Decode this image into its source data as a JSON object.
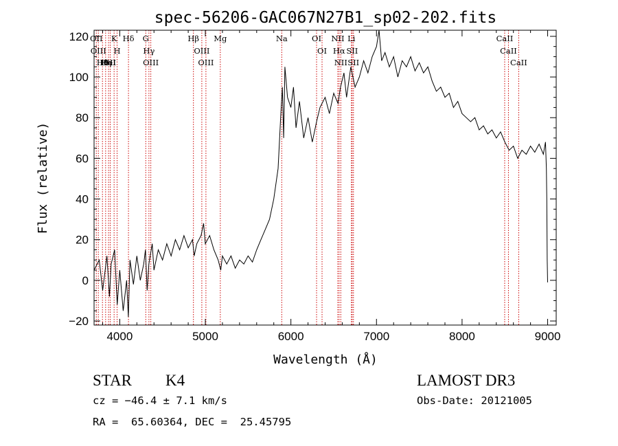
{
  "title": "spec-56206-GAC067N27B1_sp02-202.fits",
  "footer": {
    "class_label": "STAR",
    "subclass": "K4",
    "survey": "LAMOST DR3",
    "cz": "cz = −46.4 ± 7.1 km/s",
    "obs_date": "Obs-Date: 20121005",
    "radec": "RA =  65.60364, DEC =  25.45795"
  },
  "colors": {
    "line_marker": "#cc0000",
    "spectrum": "#000000"
  },
  "chart_data": {
    "type": "line",
    "xlabel": "Wavelength (Å)",
    "ylabel": "Flux (relative)",
    "xlim": [
      3700,
      9100
    ],
    "ylim": [
      -22,
      123
    ],
    "xticks": [
      4000,
      5000,
      6000,
      7000,
      8000,
      9000
    ],
    "xtick_labels": [
      "4000",
      "5000",
      "6000",
      "7000",
      "8000",
      "9000"
    ],
    "yticks": [
      -20,
      0,
      20,
      40,
      60,
      80,
      100,
      120
    ],
    "ytick_labels": [
      "−20",
      "0",
      "20",
      "40",
      "60",
      "80",
      "100",
      "120"
    ],
    "grid": false,
    "spectrum": [
      [
        3700,
        5
      ],
      [
        3760,
        10
      ],
      [
        3800,
        -5
      ],
      [
        3850,
        12
      ],
      [
        3880,
        -8
      ],
      [
        3900,
        8
      ],
      [
        3940,
        15
      ],
      [
        3970,
        -12
      ],
      [
        4000,
        5
      ],
      [
        4040,
        -15
      ],
      [
        4080,
        0
      ],
      [
        4100,
        -18
      ],
      [
        4120,
        10
      ],
      [
        4160,
        -2
      ],
      [
        4200,
        12
      ],
      [
        4240,
        0
      ],
      [
        4280,
        8
      ],
      [
        4300,
        15
      ],
      [
        4320,
        -5
      ],
      [
        4340,
        8
      ],
      [
        4380,
        18
      ],
      [
        4400,
        5
      ],
      [
        4450,
        15
      ],
      [
        4500,
        10
      ],
      [
        4550,
        18
      ],
      [
        4600,
        12
      ],
      [
        4650,
        20
      ],
      [
        4700,
        15
      ],
      [
        4750,
        22
      ],
      [
        4800,
        16
      ],
      [
        4850,
        20
      ],
      [
        4870,
        12
      ],
      [
        4900,
        18
      ],
      [
        4950,
        22
      ],
      [
        4980,
        28
      ],
      [
        5000,
        18
      ],
      [
        5050,
        22
      ],
      [
        5100,
        15
      ],
      [
        5150,
        10
      ],
      [
        5180,
        5
      ],
      [
        5200,
        12
      ],
      [
        5250,
        8
      ],
      [
        5300,
        12
      ],
      [
        5350,
        6
      ],
      [
        5400,
        10
      ],
      [
        5450,
        8
      ],
      [
        5500,
        12
      ],
      [
        5550,
        9
      ],
      [
        5600,
        15
      ],
      [
        5650,
        20
      ],
      [
        5700,
        25
      ],
      [
        5750,
        30
      ],
      [
        5800,
        40
      ],
      [
        5850,
        55
      ],
      [
        5880,
        80
      ],
      [
        5900,
        95
      ],
      [
        5915,
        70
      ],
      [
        5930,
        105
      ],
      [
        5960,
        90
      ],
      [
        6000,
        85
      ],
      [
        6030,
        95
      ],
      [
        6060,
        75
      ],
      [
        6100,
        88
      ],
      [
        6150,
        70
      ],
      [
        6200,
        80
      ],
      [
        6250,
        68
      ],
      [
        6300,
        78
      ],
      [
        6340,
        85
      ],
      [
        6400,
        90
      ],
      [
        6450,
        82
      ],
      [
        6500,
        92
      ],
      [
        6550,
        87
      ],
      [
        6580,
        95
      ],
      [
        6620,
        102
      ],
      [
        6650,
        90
      ],
      [
        6700,
        105
      ],
      [
        6750,
        95
      ],
      [
        6800,
        100
      ],
      [
        6850,
        108
      ],
      [
        6900,
        102
      ],
      [
        6950,
        110
      ],
      [
        7000,
        115
      ],
      [
        7030,
        125
      ],
      [
        7060,
        108
      ],
      [
        7100,
        112
      ],
      [
        7150,
        105
      ],
      [
        7200,
        110
      ],
      [
        7250,
        100
      ],
      [
        7300,
        108
      ],
      [
        7350,
        105
      ],
      [
        7400,
        110
      ],
      [
        7450,
        103
      ],
      [
        7500,
        107
      ],
      [
        7550,
        102
      ],
      [
        7600,
        105
      ],
      [
        7650,
        98
      ],
      [
        7700,
        93
      ],
      [
        7750,
        95
      ],
      [
        7800,
        90
      ],
      [
        7850,
        92
      ],
      [
        7900,
        85
      ],
      [
        7950,
        88
      ],
      [
        8000,
        82
      ],
      [
        8050,
        80
      ],
      [
        8100,
        78
      ],
      [
        8150,
        80
      ],
      [
        8200,
        74
      ],
      [
        8250,
        76
      ],
      [
        8300,
        72
      ],
      [
        8350,
        74
      ],
      [
        8400,
        70
      ],
      [
        8450,
        73
      ],
      [
        8500,
        68
      ],
      [
        8550,
        64
      ],
      [
        8600,
        66
      ],
      [
        8650,
        60
      ],
      [
        8700,
        64
      ],
      [
        8750,
        62
      ],
      [
        8800,
        66
      ],
      [
        8850,
        63
      ],
      [
        8900,
        67
      ],
      [
        8950,
        62
      ],
      [
        8975,
        68
      ],
      [
        8985,
        55
      ],
      [
        8990,
        40
      ],
      [
        8995,
        10
      ],
      [
        9000,
        -1
      ]
    ],
    "lines": [
      {
        "x": 3726,
        "label": "OII"
      },
      {
        "x": 3750,
        "label": "OIII"
      },
      {
        "x": 3798,
        "label": "Hθ"
      },
      {
        "x": 3835,
        "label": "Hη"
      },
      {
        "x": 3869,
        "label": "HeI"
      },
      {
        "x": 3889,
        "label": "SII"
      },
      {
        "x": 3934,
        "label": "K"
      },
      {
        "x": 3969,
        "label": "H"
      },
      {
        "x": 4102,
        "label": "Hδ"
      },
      {
        "x": 4304,
        "label": "G"
      },
      {
        "x": 4341,
        "label": "Hγ"
      },
      {
        "x": 4363,
        "label": "OIII"
      },
      {
        "x": 4861,
        "label": "Hβ"
      },
      {
        "x": 4959,
        "label": "OIII"
      },
      {
        "x": 5007,
        "label": "OIII"
      },
      {
        "x": 5175,
        "label": "Mg"
      },
      {
        "x": 5893,
        "label": "Na"
      },
      {
        "x": 6300,
        "label": "OI"
      },
      {
        "x": 6364,
        "label": "OI"
      },
      {
        "x": 6548,
        "label": "NII"
      },
      {
        "x": 6563,
        "label": "Hα"
      },
      {
        "x": 6583,
        "label": "NII"
      },
      {
        "x": 6707,
        "label": "Li"
      },
      {
        "x": 6716,
        "label": "SII"
      },
      {
        "x": 6731,
        "label": "SII"
      },
      {
        "x": 8498,
        "label": "CaII"
      },
      {
        "x": 8542,
        "label": "CaII"
      },
      {
        "x": 8662,
        "label": "CaII"
      }
    ]
  }
}
